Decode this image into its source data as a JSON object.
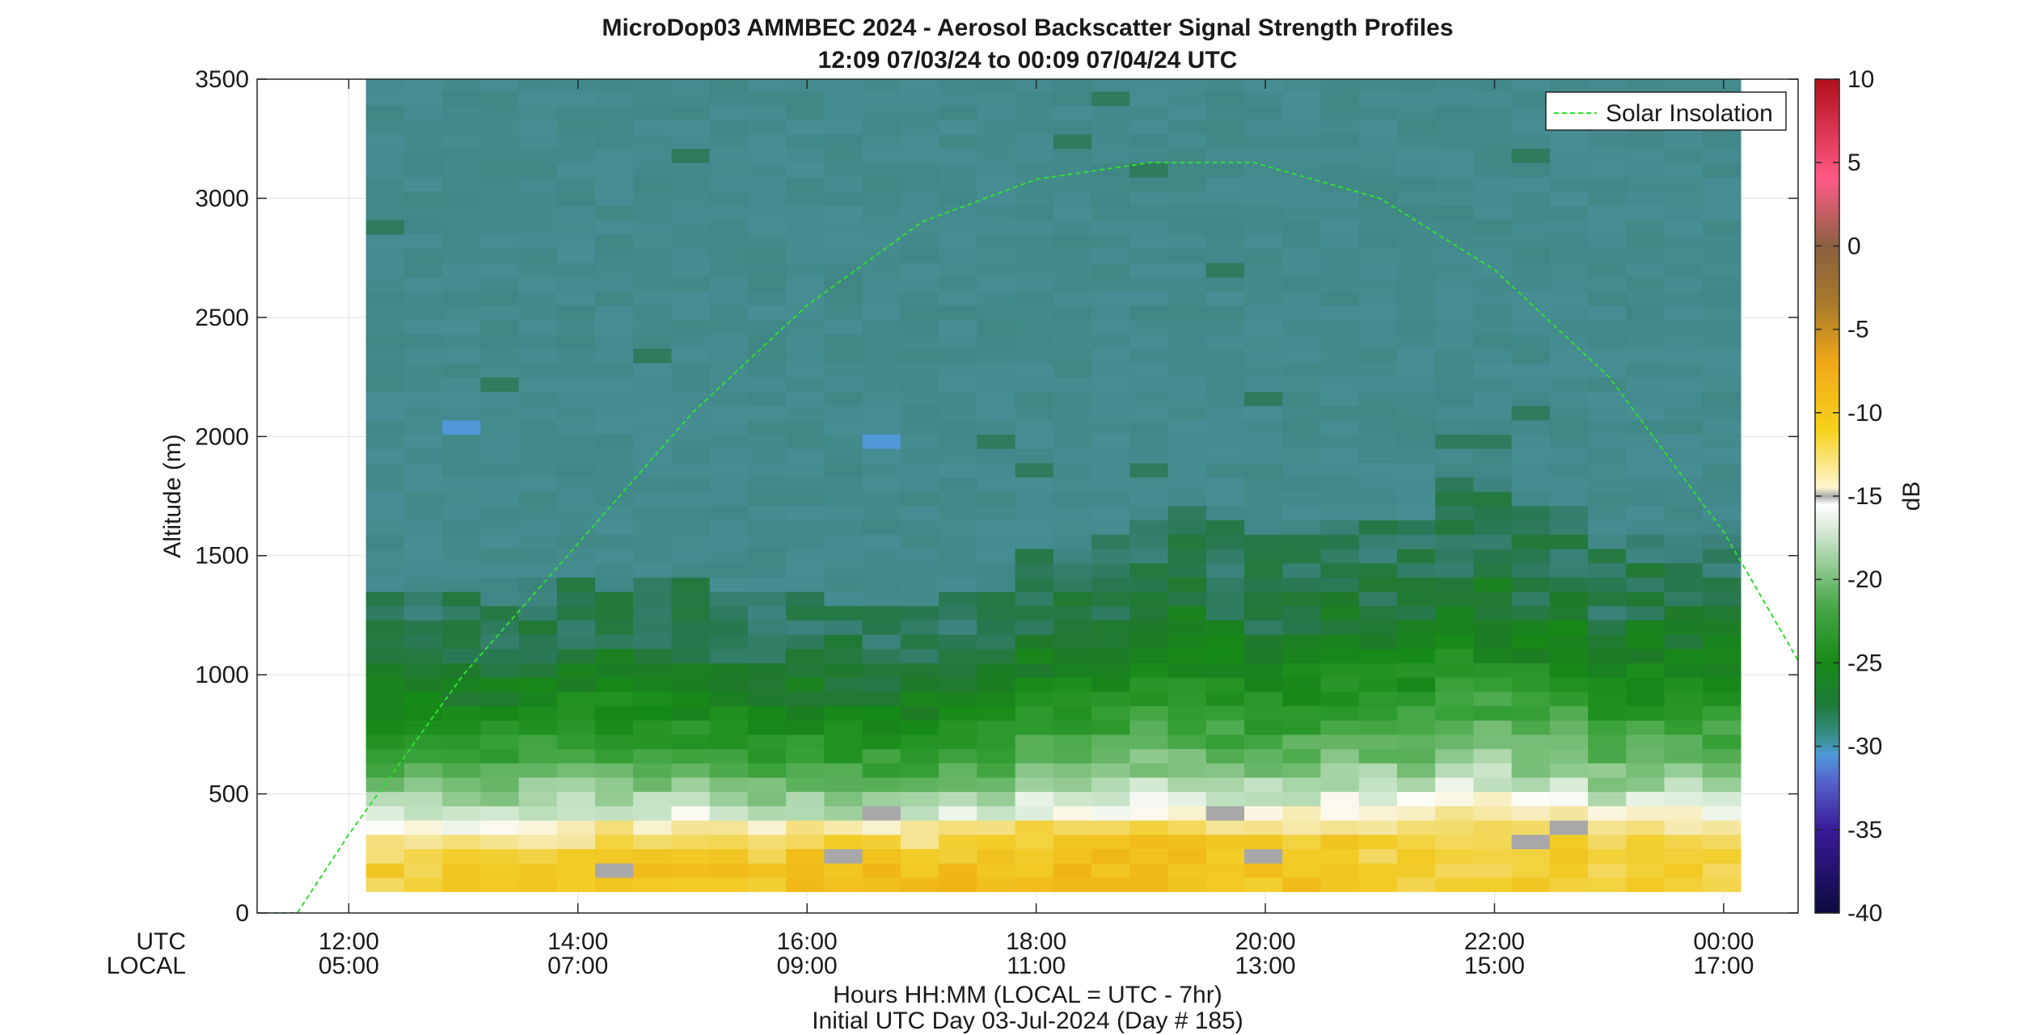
{
  "chart_data": {
    "type": "heatmap",
    "title": "MicroDop03 AMMBEC 2024 - Aerosol Backscatter Signal Strength Profiles",
    "subtitle": "12:09 07/03/24 to 00:09 07/04/24  UTC",
    "xlabel": "Hours HH:MM  (LOCAL = UTC - 7hr)",
    "xlabel2": "Initial UTC Day 03-Jul-2024 (Day # 185)",
    "ylabel": "Altitude (m)",
    "row_labels": [
      "UTC",
      "LOCAL"
    ],
    "x_ticks_utc": [
      "12:00",
      "14:00",
      "16:00",
      "18:00",
      "20:00",
      "22:00",
      "00:00"
    ],
    "x_ticks_local": [
      "05:00",
      "07:00",
      "09:00",
      "11:00",
      "13:00",
      "15:00",
      "17:00"
    ],
    "x_tick_hours": [
      12,
      14,
      16,
      18,
      20,
      22,
      24
    ],
    "xlim_hours": [
      11.2,
      24.65
    ],
    "y_ticks": [
      "0",
      "500",
      "1000",
      "1500",
      "2000",
      "2500",
      "3000",
      "3500"
    ],
    "ylim": [
      0,
      3500
    ],
    "colorbar": {
      "label": "dB",
      "ticks": [
        "10",
        "5",
        "0",
        "-5",
        "-10",
        "-15",
        "-20",
        "-25",
        "-30",
        "-35",
        "-40"
      ],
      "range": [
        -40,
        10
      ]
    },
    "legend": {
      "entries": [
        "Solar Insolation"
      ],
      "placement": "top-right"
    },
    "grid": true,
    "data_x_range_hours": [
      12.15,
      24.15
    ],
    "data_alt_range_m": [
      90,
      3500
    ],
    "time_step_hours": 0.3333,
    "altitude_step_m": 60,
    "mean_profile_db": [
      {
        "alt": 150,
        "db": -11
      },
      {
        "alt": 250,
        "db": -12
      },
      {
        "alt": 350,
        "db": -15
      },
      {
        "alt": 450,
        "db": -18
      },
      {
        "alt": 600,
        "db": -21
      },
      {
        "alt": 800,
        "db": -24
      },
      {
        "alt": 1000,
        "db": -26
      },
      {
        "alt": 1200,
        "db": -27
      },
      {
        "alt": 1400,
        "db": -28
      },
      {
        "alt": 2500,
        "db": -28.5
      }
    ],
    "mixed_layer_top_m": [
      1350,
      1310,
      1380,
      1400,
      1390,
      1350,
      1300,
      1250,
      1250,
      1350,
      1500,
      1550,
      1650,
      1600,
      1550,
      1650,
      1650,
      1800,
      1700,
      1500,
      1560,
      1580
    ],
    "solar_insolation_curve": {
      "x_hours": [
        11.2,
        11.55,
        12.0,
        13.0,
        14.0,
        15.0,
        16.0,
        17.0,
        18.0,
        19.0,
        19.9,
        21.0,
        22.0,
        23.0,
        24.0,
        24.65
      ],
      "y_m": [
        0,
        0,
        330,
        1000,
        1550,
        2100,
        2550,
        2900,
        3080,
        3150,
        3150,
        3000,
        2700,
        2250,
        1600,
        1060
      ]
    }
  },
  "colors": {
    "background_aloft": "#478f96",
    "boundary_layer_green": "#1e8a1e",
    "surface_yellow": "#f2c300",
    "solar_line": "#33dd33",
    "missing_gray": "#a8a8a8"
  }
}
